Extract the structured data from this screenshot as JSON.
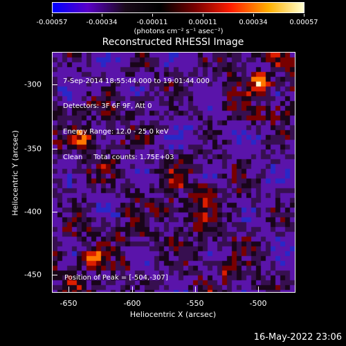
{
  "colorbar": {
    "ticks": [
      "-0.00057",
      "-0.00034",
      "-0.00011",
      "0.00011",
      "0.00034",
      "0.00057"
    ],
    "units": "(photons cm⁻² s⁻¹ asec⁻²)",
    "colors": [
      "#0000ff",
      "#5a00c8",
      "#1a0a1a",
      "#000000",
      "#7a0000",
      "#ff1e00",
      "#ffb000",
      "#ffffd0"
    ]
  },
  "title": "Reconstructed RHESSI Image",
  "info": {
    "line1": "7-Sep-2014 18:55:44.000 to 19:01:44.000",
    "line2": "Detectors: 3F 6F 9F, Att 0",
    "line3": "Energy Range: 12.0 - 25.0 keV",
    "line4": "Clean     Total counts: 1.75E+03"
  },
  "peak": "Position of Peak = [-504,-307]",
  "x_ticks": [
    "-650",
    "-600",
    "-550",
    "-500"
  ],
  "y_ticks": [
    "-300",
    "-350",
    "-400",
    "-450"
  ],
  "xlabel": "Heliocentric X (arcsec)",
  "ylabel": "Heliocentric Y (arcsec)",
  "timestamp": "16-May-2022 23:06"
}
